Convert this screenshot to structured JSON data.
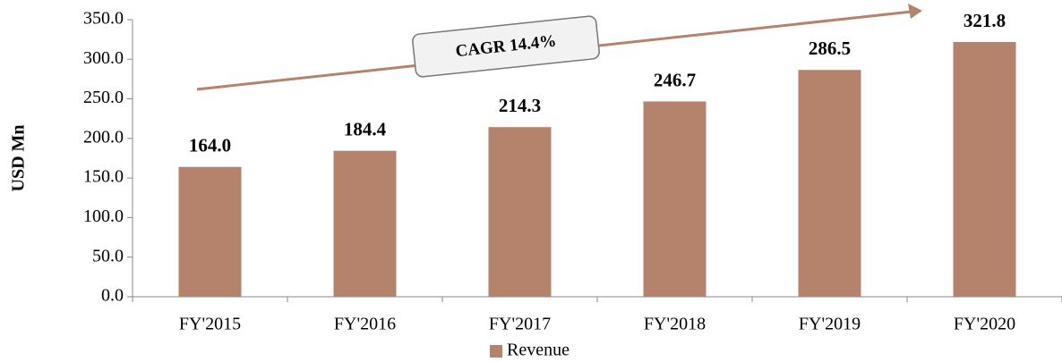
{
  "chart_data": {
    "type": "bar",
    "y_label": "USD Mn",
    "annotation": "CAGR 14.4%",
    "categories": [
      "FY'2015",
      "FY'2016",
      "FY'2017",
      "FY'2018",
      "FY'2019",
      "FY'2020"
    ],
    "series": [
      {
        "name": "Revenue",
        "color": "#b5826c",
        "values": [
          164.0,
          184.4,
          214.3,
          246.7,
          286.5,
          321.8
        ],
        "value_labels": [
          "164.0",
          "184.4",
          "214.3",
          "246.7",
          "286.5",
          "321.8"
        ]
      }
    ],
    "ylim": [
      0,
      350
    ],
    "yticks": [
      {
        "value": 0,
        "label": "0.0"
      },
      {
        "value": 50,
        "label": "50.0"
      },
      {
        "value": 100,
        "label": "100.0"
      },
      {
        "value": 150,
        "label": "150.0"
      },
      {
        "value": 200,
        "label": "200.0"
      },
      {
        "value": 250,
        "label": "250.0"
      },
      {
        "value": 300,
        "label": "300.0"
      },
      {
        "value": 350,
        "label": "350.0"
      }
    ],
    "grid": false
  }
}
